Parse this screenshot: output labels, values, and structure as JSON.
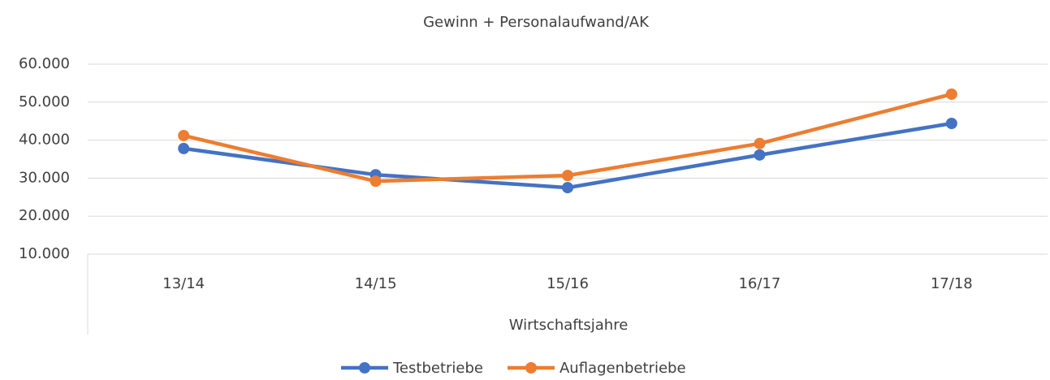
{
  "chart_data": {
    "type": "line",
    "title": "Gewinn + Personalaufwand/AK",
    "x_label": "Wirtschaftsjahre",
    "categories": [
      "13/14",
      "14/15",
      "15/16",
      "16/17",
      "17/18"
    ],
    "series": [
      {
        "name": "Testbetriebe",
        "color": "#4472c4",
        "values": [
          37800,
          30900,
          27500,
          36100,
          44400
        ]
      },
      {
        "name": "Auflagenbetriebe",
        "color": "#ed7d31",
        "values": [
          41200,
          29200,
          30700,
          39100,
          52100
        ]
      }
    ],
    "ylim": [
      10000,
      60000
    ],
    "yticks": [
      {
        "value": 10000,
        "label": "10.000"
      },
      {
        "value": 20000,
        "label": "20.000"
      },
      {
        "value": 30000,
        "label": "30.000"
      },
      {
        "value": 40000,
        "label": "40.000"
      },
      {
        "value": 50000,
        "label": "50.000"
      },
      {
        "value": 60000,
        "label": "60.000"
      }
    ],
    "grid": true,
    "legend": "bottom"
  }
}
